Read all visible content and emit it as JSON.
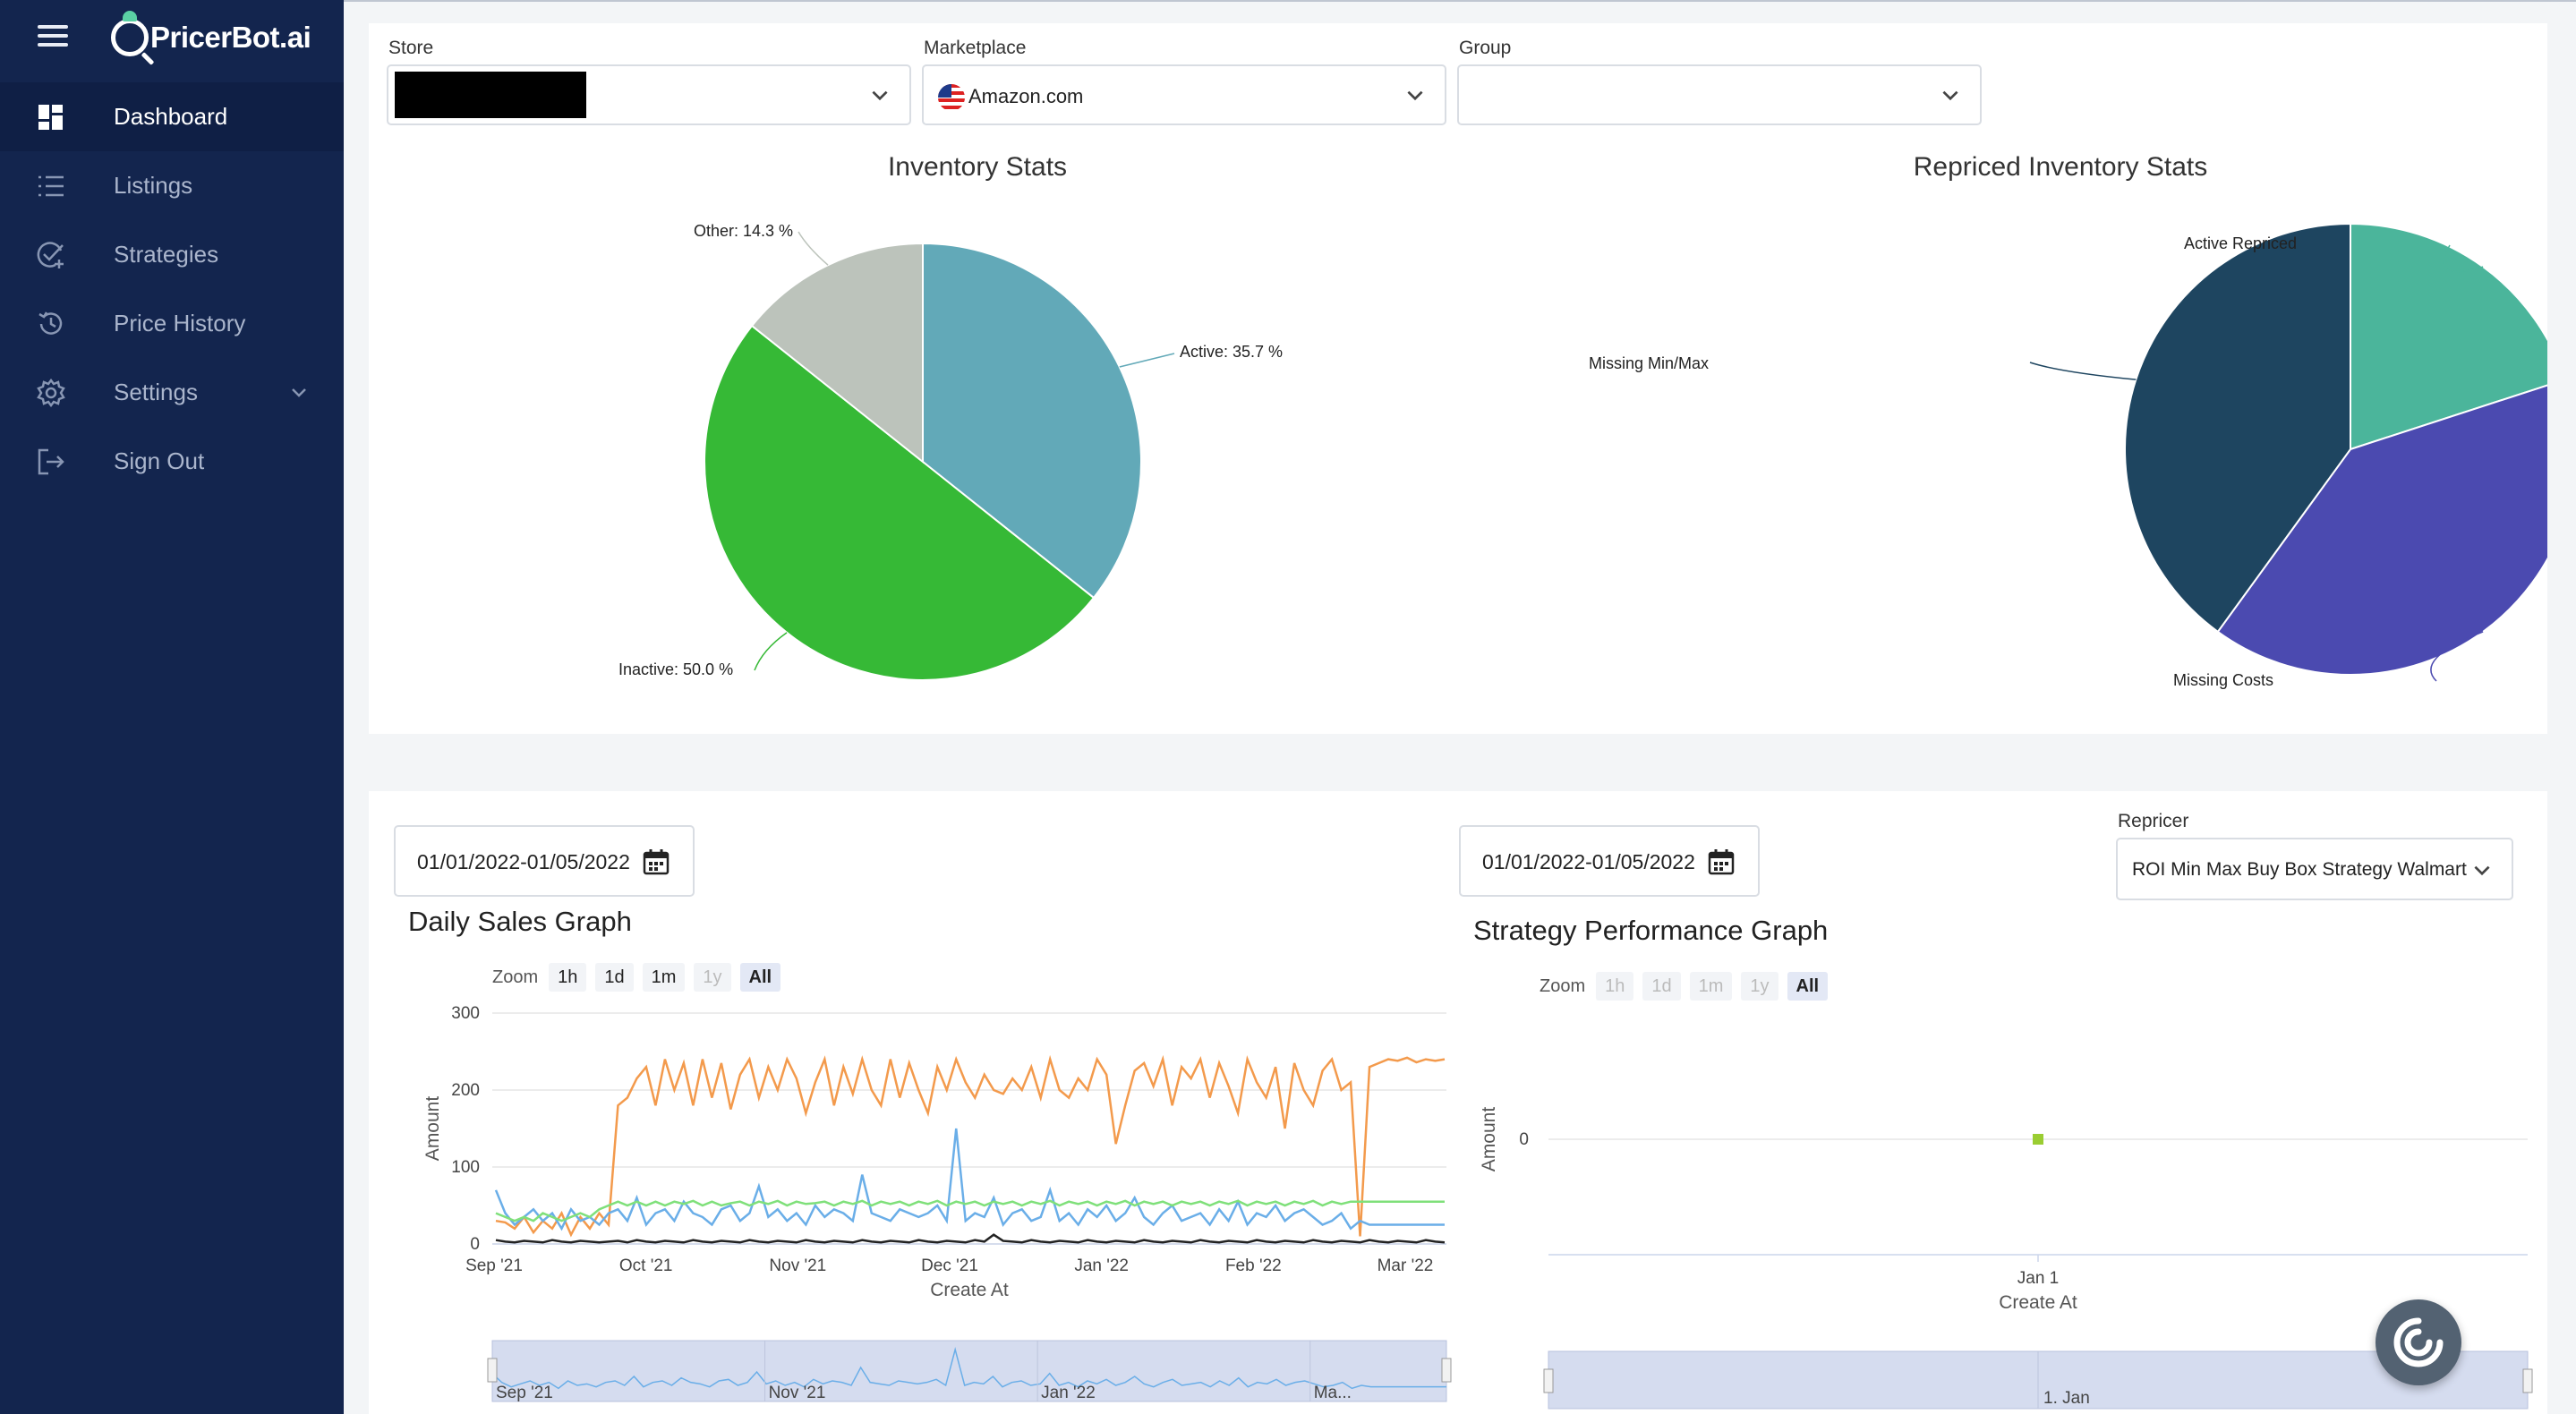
{
  "app": {
    "logo_text": "PricerBot.ai"
  },
  "sidebar": {
    "items": [
      {
        "label": "Dashboard",
        "icon": "dashboard-icon",
        "active": true
      },
      {
        "label": "Listings",
        "icon": "list-icon"
      },
      {
        "label": "Strategies",
        "icon": "strategies-icon"
      },
      {
        "label": "Price History",
        "icon": "history-icon"
      },
      {
        "label": "Settings",
        "icon": "gear-icon",
        "expandable": true
      },
      {
        "label": "Sign Out",
        "icon": "sign-out-icon"
      }
    ]
  },
  "filters": {
    "store_label": "Store",
    "store_value": "",
    "marketplace_label": "Marketplace",
    "marketplace_value": "Amazon.com",
    "group_label": "Group",
    "group_value": ""
  },
  "inventory_stats": {
    "title": "Inventory Stats",
    "labels": [
      "Active: 35.7 %",
      "Inactive: 50.0 %",
      "Other: 14.3 %"
    ]
  },
  "repriced_stats": {
    "title": "Repriced Inventory Stats",
    "labels": [
      "Active Repriced",
      "Missing Costs",
      "Missing Min/Max"
    ]
  },
  "daily_sales": {
    "date_range": "01/01/2022-01/05/2022",
    "title": "Daily Sales Graph",
    "zoom_label": "Zoom",
    "zoom_buttons": [
      "1h",
      "1d",
      "1m",
      "1y",
      "All"
    ],
    "x_title": "Create At",
    "y_title": "Amount"
  },
  "strategy_perf": {
    "date_range": "01/01/2022-01/05/2022",
    "title": "Strategy Performance Graph",
    "repricer_label": "Repricer",
    "repricer_value": "ROI Min Max Buy Box Strategy Walmart",
    "zoom_label": "Zoom",
    "zoom_buttons": [
      "1h",
      "1d",
      "1m",
      "1y",
      "All"
    ],
    "x_title": "Create At",
    "y_title": "Amount"
  },
  "chart_data": [
    {
      "type": "pie",
      "title": "Inventory Stats",
      "slices": [
        {
          "label": "Active",
          "value": 35.7,
          "color": "#62a9b8"
        },
        {
          "label": "Inactive",
          "value": 50.0,
          "color": "#36b936"
        },
        {
          "label": "Other",
          "value": 14.3,
          "color": "#bcc3bb"
        }
      ]
    },
    {
      "type": "pie",
      "title": "Repriced Inventory Stats",
      "slices": [
        {
          "label": "Active Repriced",
          "value": 20,
          "color": "#4bb59b"
        },
        {
          "label": "Missing Costs",
          "value": 40,
          "color": "#4b4ab0"
        },
        {
          "label": "Missing Min/Max",
          "value": 40,
          "color": "#1e4560"
        }
      ]
    },
    {
      "type": "line",
      "title": "Daily Sales Graph",
      "xlabel": "Create At",
      "ylabel": "Amount",
      "ylim": [
        0,
        300
      ],
      "yticks": [
        0,
        100,
        200,
        300
      ],
      "xticks": [
        "Sep '21",
        "Oct '21",
        "Nov '21",
        "Dec '21",
        "Jan '22",
        "Feb '22",
        "Mar '22"
      ],
      "navigator_ticks": [
        "Sep '21",
        "Nov '21",
        "Jan '22",
        "Ma..."
      ],
      "series": [
        {
          "color": "#f39a4c",
          "values": [
            30,
            28,
            20,
            35,
            15,
            30,
            20,
            40,
            12,
            35,
            20,
            40,
            25,
            180,
            190,
            215,
            230,
            180,
            240,
            200,
            235,
            180,
            240,
            190,
            235,
            175,
            220,
            240,
            190,
            230,
            200,
            240,
            215,
            170,
            210,
            240,
            180,
            230,
            195,
            240,
            200,
            180,
            240,
            190,
            235,
            200,
            170,
            230,
            200,
            240,
            210,
            190,
            220,
            200,
            195,
            215,
            200,
            230,
            190,
            240,
            200,
            190,
            215,
            200,
            240,
            220,
            130,
            180,
            225,
            235,
            205,
            240,
            180,
            230,
            215,
            240,
            190,
            235,
            205,
            170,
            240,
            210,
            190,
            230,
            150,
            235,
            200,
            180,
            225,
            240,
            200,
            210,
            10,
            230,
            235,
            240,
            238,
            242,
            236,
            240,
            238,
            240
          ]
        },
        {
          "color": "#6aaee8",
          "values": [
            70,
            40,
            25,
            35,
            45,
            30,
            40,
            20,
            45,
            30,
            35,
            25,
            40,
            45,
            30,
            60,
            25,
            40,
            45,
            30,
            55,
            40,
            35,
            25,
            45,
            50,
            30,
            40,
            75,
            35,
            45,
            30,
            40,
            25,
            50,
            35,
            45,
            40,
            30,
            90,
            40,
            35,
            30,
            45,
            40,
            35,
            40,
            50,
            30,
            150,
            30,
            40,
            35,
            60,
            25,
            40,
            45,
            30,
            35,
            70,
            30,
            40,
            25,
            45,
            35,
            50,
            30,
            40,
            60,
            35,
            25,
            40,
            50,
            30,
            35,
            40,
            25,
            45,
            30,
            55,
            25,
            40,
            35,
            50,
            30,
            40,
            45,
            35,
            25,
            30,
            40,
            20,
            30,
            25,
            25,
            25,
            25,
            25,
            25,
            25,
            25,
            25
          ]
        },
        {
          "color": "#7fe07a",
          "values": [
            40,
            35,
            30,
            35,
            30,
            40,
            35,
            30,
            35,
            40,
            35,
            45,
            50,
            55,
            50,
            55,
            50,
            55,
            50,
            55,
            52,
            56,
            50,
            55,
            50,
            53,
            55,
            50,
            55,
            52,
            56,
            50,
            55,
            52,
            53,
            55,
            50,
            55,
            52,
            56,
            50,
            55,
            52,
            55,
            50,
            55,
            52,
            56,
            50,
            55,
            52,
            55,
            50,
            55,
            52,
            55,
            50,
            55,
            52,
            56,
            50,
            55,
            52,
            55,
            50,
            55,
            52,
            56,
            50,
            55,
            52,
            55,
            50,
            55,
            52,
            55,
            50,
            55,
            52,
            56,
            50,
            55,
            52,
            55,
            50,
            55,
            52,
            56,
            50,
            55,
            52,
            55,
            55,
            55,
            55,
            55,
            55,
            55,
            55,
            55,
            55,
            55
          ]
        },
        {
          "color": "#222222",
          "values": [
            5,
            3,
            2,
            4,
            3,
            2,
            5,
            3,
            2,
            4,
            3,
            2,
            3,
            4,
            2,
            5,
            3,
            2,
            4,
            3,
            2,
            5,
            3,
            2,
            4,
            3,
            2,
            5,
            3,
            2,
            4,
            3,
            2,
            5,
            3,
            2,
            4,
            3,
            2,
            5,
            3,
            2,
            4,
            3,
            2,
            5,
            3,
            2,
            4,
            3,
            2,
            5,
            3,
            12,
            4,
            3,
            2,
            5,
            3,
            2,
            4,
            3,
            2,
            5,
            3,
            2,
            4,
            3,
            2,
            5,
            3,
            2,
            4,
            3,
            2,
            5,
            3,
            2,
            4,
            3,
            2,
            5,
            3,
            2,
            4,
            3,
            2,
            5,
            3,
            2,
            4,
            3,
            2,
            5,
            3,
            2,
            4,
            3,
            2,
            5,
            3,
            2
          ]
        }
      ]
    },
    {
      "type": "scatter",
      "title": "Strategy Performance Graph",
      "xlabel": "Create At",
      "ylabel": "Amount",
      "yticks": [
        0
      ],
      "xticks": [
        "Jan 1"
      ],
      "navigator_ticks": [
        "1. Jan"
      ],
      "points": [
        {
          "x": "Jan 1",
          "y": 0,
          "color": "#9acd32"
        }
      ]
    }
  ]
}
